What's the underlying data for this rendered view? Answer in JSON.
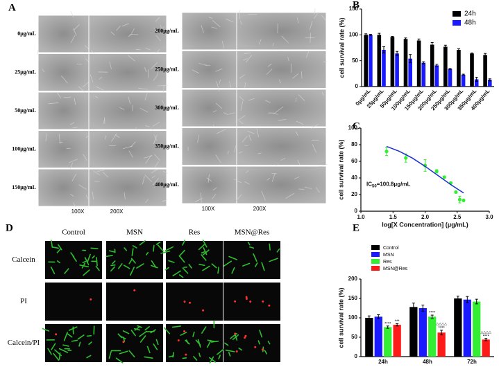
{
  "panel_labels": [
    "A",
    "B",
    "C",
    "D",
    "E"
  ],
  "micrographs": {
    "left_concentrations": [
      "0μg/mL",
      "25μg/mL",
      "50μg/mL",
      "100μg/mL",
      "150μg/mL"
    ],
    "right_concentrations": [
      "200μg/mL",
      "250μg/mL",
      "300μg/mL",
      "350μg/mL",
      "400μg/mL"
    ],
    "magnifications": [
      "100X",
      "200X"
    ]
  },
  "fluorescence": {
    "columns": [
      "Control",
      "MSN",
      "Res",
      "MSN@Res"
    ],
    "rows": [
      "Calcein",
      "PI",
      "Calcein/PI"
    ]
  },
  "chart_data": [
    {
      "type": "bar",
      "y_label": "cell survival rate (%)",
      "categories": [
        "0μg/mL",
        "25μg/mL",
        "50μg/mL",
        "100μg/mL",
        "150μg/mL",
        "200μg/mL",
        "250μg/mL",
        "300μg/mL",
        "350μg/mL",
        "400μg/mL"
      ],
      "series": [
        {
          "name": "24h",
          "color": "#000000",
          "values": [
            100,
            100,
            96,
            92,
            89,
            81,
            77,
            71,
            64,
            61
          ],
          "errors": [
            2,
            3,
            1,
            2,
            3,
            4,
            3,
            2,
            1,
            3
          ]
        },
        {
          "name": "48h",
          "color": "#1a1aff",
          "values": [
            100,
            71,
            64,
            54,
            46,
            41,
            34,
            23,
            14,
            13
          ],
          "errors": [
            1,
            6,
            4,
            8,
            2,
            2,
            1,
            1,
            4,
            2
          ]
        }
      ],
      "ylim": [
        0,
        150
      ],
      "yticks": [
        0,
        50,
        100,
        150
      ],
      "legend": "upper right"
    },
    {
      "type": "scatter",
      "x_label": "log[X Concentration] (μg/mL)",
      "y_label": "cell survival rate (%)",
      "annotation": [
        "IC",
        "50",
        "=100.8μg/mL"
      ],
      "series": [
        {
          "kind": "points",
          "color": "#33ee33",
          "x": [
            1.4,
            1.7,
            2.0,
            2.18,
            2.3,
            2.4,
            2.48,
            2.54,
            2.6
          ],
          "values": [
            72,
            64,
            55,
            48,
            41,
            34,
            23,
            14,
            13
          ],
          "errors": [
            5,
            5,
            7,
            2,
            1,
            1,
            1,
            4,
            1
          ]
        },
        {
          "kind": "curve",
          "color": "#1a2fd0",
          "x": [
            1.4,
            1.6,
            1.8,
            2.0,
            2.2,
            2.4,
            2.6
          ],
          "values": [
            78,
            72,
            64,
            54,
            43,
            32,
            22
          ]
        }
      ],
      "xlim": [
        1.0,
        3.0
      ],
      "xticks": [
        {
          "value": 1.0,
          "label": "1.0"
        },
        {
          "value": 1.5,
          "label": "1.5"
        },
        {
          "value": 2.0,
          "label": "2.0"
        },
        {
          "value": 2.5,
          "label": "2.5"
        },
        {
          "value": 3.0,
          "label": "3.0"
        }
      ],
      "ylim": [
        0,
        100
      ],
      "yticks": [
        0,
        20,
        40,
        60,
        80,
        100
      ]
    },
    {
      "type": "bar",
      "y_label": "cell survival rate (%)",
      "categories": [
        "24h",
        "48h",
        "72h"
      ],
      "series": [
        {
          "name": "Control",
          "color": "#000000",
          "values": [
            100,
            128,
            150
          ],
          "errors": [
            5,
            10,
            6
          ]
        },
        {
          "name": "MSN",
          "color": "#1a1aff",
          "values": [
            103,
            125,
            147
          ],
          "errors": [
            5,
            8,
            8
          ]
        },
        {
          "name": "Res",
          "color": "#33ee33",
          "values": [
            76,
            103,
            142
          ],
          "errors": [
            3,
            4,
            6
          ],
          "significance": [
            "****",
            "****",
            null
          ]
        },
        {
          "name": "MSN@Res",
          "color": "#ff1a1a",
          "values": [
            82,
            62,
            44
          ],
          "errors": [
            3,
            6,
            3
          ],
          "significance": [
            "***",
            "****",
            "****"
          ],
          "delta_marks": [
            null,
            "△△△△",
            "△△△△"
          ]
        }
      ],
      "ylim": [
        0,
        200
      ],
      "yticks": [
        0,
        50,
        100,
        150,
        200
      ],
      "legend": "upper left"
    }
  ]
}
